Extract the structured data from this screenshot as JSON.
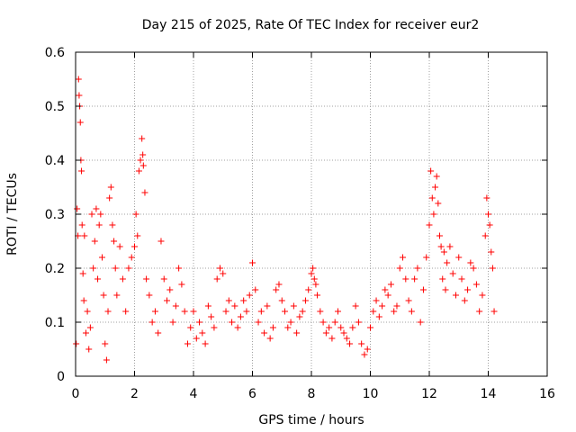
{
  "chart_data": {
    "type": "scatter",
    "title": "Day 215 of 2025, Rate Of TEC Index for receiver eur2",
    "xlabel": "GPS time / hours",
    "ylabel": "ROTI / TECUs",
    "xlim": [
      0,
      16
    ],
    "ylim": [
      0,
      0.6
    ],
    "xticks": [
      0,
      2,
      4,
      6,
      8,
      10,
      12,
      14,
      16
    ],
    "yticks": [
      0,
      0.1,
      0.2,
      0.3,
      0.4,
      0.5,
      0.6
    ],
    "xtick_labels": [
      "0",
      "2",
      "4",
      "6",
      "8",
      "10",
      "12",
      "14",
      "16"
    ],
    "ytick_labels": [
      "0",
      "0.1",
      "0.2",
      "0.3",
      "0.4",
      "0.5",
      "0.6"
    ],
    "grid": true,
    "legend": "none",
    "marker": "+",
    "series": [
      {
        "color": "#ff0000",
        "points": [
          [
            0.02,
            0.06
          ],
          [
            0.05,
            0.31
          ],
          [
            0.08,
            0.26
          ],
          [
            0.1,
            0.55
          ],
          [
            0.12,
            0.52
          ],
          [
            0.14,
            0.5
          ],
          [
            0.16,
            0.47
          ],
          [
            0.18,
            0.4
          ],
          [
            0.2,
            0.38
          ],
          [
            0.22,
            0.28
          ],
          [
            0.25,
            0.19
          ],
          [
            0.28,
            0.14
          ],
          [
            0.3,
            0.26
          ],
          [
            0.35,
            0.08
          ],
          [
            0.4,
            0.12
          ],
          [
            0.45,
            0.05
          ],
          [
            0.5,
            0.09
          ],
          [
            0.55,
            0.3
          ],
          [
            0.6,
            0.2
          ],
          [
            0.65,
            0.25
          ],
          [
            0.7,
            0.31
          ],
          [
            0.75,
            0.18
          ],
          [
            0.8,
            0.28
          ],
          [
            0.85,
            0.3
          ],
          [
            0.9,
            0.22
          ],
          [
            0.95,
            0.15
          ],
          [
            1.0,
            0.06
          ],
          [
            1.05,
            0.03
          ],
          [
            1.1,
            0.12
          ],
          [
            1.15,
            0.33
          ],
          [
            1.2,
            0.35
          ],
          [
            1.25,
            0.28
          ],
          [
            1.3,
            0.25
          ],
          [
            1.35,
            0.2
          ],
          [
            1.4,
            0.15
          ],
          [
            1.5,
            0.24
          ],
          [
            1.6,
            0.18
          ],
          [
            1.7,
            0.12
          ],
          [
            1.8,
            0.2
          ],
          [
            1.9,
            0.22
          ],
          [
            2.0,
            0.24
          ],
          [
            2.05,
            0.3
          ],
          [
            2.1,
            0.26
          ],
          [
            2.15,
            0.38
          ],
          [
            2.2,
            0.4
          ],
          [
            2.25,
            0.44
          ],
          [
            2.28,
            0.41
          ],
          [
            2.3,
            0.39
          ],
          [
            2.35,
            0.34
          ],
          [
            2.4,
            0.18
          ],
          [
            2.5,
            0.15
          ],
          [
            2.6,
            0.1
          ],
          [
            2.7,
            0.12
          ],
          [
            2.8,
            0.08
          ],
          [
            2.9,
            0.25
          ],
          [
            3.0,
            0.18
          ],
          [
            3.1,
            0.14
          ],
          [
            3.2,
            0.16
          ],
          [
            3.3,
            0.1
          ],
          [
            3.4,
            0.13
          ],
          [
            3.5,
            0.2
          ],
          [
            3.6,
            0.17
          ],
          [
            3.7,
            0.12
          ],
          [
            3.8,
            0.06
          ],
          [
            3.9,
            0.09
          ],
          [
            4.0,
            0.12
          ],
          [
            4.1,
            0.07
          ],
          [
            4.2,
            0.1
          ],
          [
            4.3,
            0.08
          ],
          [
            4.4,
            0.06
          ],
          [
            4.5,
            0.13
          ],
          [
            4.6,
            0.11
          ],
          [
            4.7,
            0.09
          ],
          [
            4.8,
            0.18
          ],
          [
            4.9,
            0.2
          ],
          [
            5.0,
            0.19
          ],
          [
            5.1,
            0.12
          ],
          [
            5.2,
            0.14
          ],
          [
            5.3,
            0.1
          ],
          [
            5.4,
            0.13
          ],
          [
            5.5,
            0.09
          ],
          [
            5.6,
            0.11
          ],
          [
            5.7,
            0.14
          ],
          [
            5.8,
            0.12
          ],
          [
            5.9,
            0.15
          ],
          [
            6.0,
            0.21
          ],
          [
            6.1,
            0.16
          ],
          [
            6.2,
            0.1
          ],
          [
            6.3,
            0.12
          ],
          [
            6.4,
            0.08
          ],
          [
            6.5,
            0.13
          ],
          [
            6.6,
            0.07
          ],
          [
            6.7,
            0.09
          ],
          [
            6.8,
            0.16
          ],
          [
            6.9,
            0.17
          ],
          [
            7.0,
            0.14
          ],
          [
            7.1,
            0.12
          ],
          [
            7.2,
            0.09
          ],
          [
            7.3,
            0.1
          ],
          [
            7.4,
            0.13
          ],
          [
            7.5,
            0.08
          ],
          [
            7.6,
            0.11
          ],
          [
            7.7,
            0.12
          ],
          [
            7.8,
            0.14
          ],
          [
            7.9,
            0.16
          ],
          [
            8.0,
            0.19
          ],
          [
            8.05,
            0.2
          ],
          [
            8.1,
            0.18
          ],
          [
            8.15,
            0.17
          ],
          [
            8.2,
            0.15
          ],
          [
            8.3,
            0.12
          ],
          [
            8.4,
            0.1
          ],
          [
            8.5,
            0.08
          ],
          [
            8.6,
            0.09
          ],
          [
            8.7,
            0.07
          ],
          [
            8.8,
            0.1
          ],
          [
            8.9,
            0.12
          ],
          [
            9.0,
            0.09
          ],
          [
            9.1,
            0.08
          ],
          [
            9.2,
            0.07
          ],
          [
            9.3,
            0.06
          ],
          [
            9.4,
            0.09
          ],
          [
            9.5,
            0.13
          ],
          [
            9.6,
            0.1
          ],
          [
            9.7,
            0.06
          ],
          [
            9.8,
            0.04
          ],
          [
            9.9,
            0.05
          ],
          [
            10.0,
            0.09
          ],
          [
            10.1,
            0.12
          ],
          [
            10.2,
            0.14
          ],
          [
            10.3,
            0.11
          ],
          [
            10.4,
            0.13
          ],
          [
            10.5,
            0.16
          ],
          [
            10.6,
            0.15
          ],
          [
            10.7,
            0.17
          ],
          [
            10.8,
            0.12
          ],
          [
            10.9,
            0.13
          ],
          [
            11.0,
            0.2
          ],
          [
            11.1,
            0.22
          ],
          [
            11.2,
            0.18
          ],
          [
            11.3,
            0.14
          ],
          [
            11.4,
            0.12
          ],
          [
            11.5,
            0.18
          ],
          [
            11.6,
            0.2
          ],
          [
            11.7,
            0.1
          ],
          [
            11.8,
            0.16
          ],
          [
            11.9,
            0.22
          ],
          [
            12.0,
            0.28
          ],
          [
            12.05,
            0.38
          ],
          [
            12.1,
            0.33
          ],
          [
            12.15,
            0.3
          ],
          [
            12.2,
            0.35
          ],
          [
            12.25,
            0.37
          ],
          [
            12.3,
            0.32
          ],
          [
            12.35,
            0.26
          ],
          [
            12.4,
            0.24
          ],
          [
            12.45,
            0.18
          ],
          [
            12.5,
            0.23
          ],
          [
            12.55,
            0.16
          ],
          [
            12.6,
            0.21
          ],
          [
            12.7,
            0.24
          ],
          [
            12.8,
            0.19
          ],
          [
            12.9,
            0.15
          ],
          [
            13.0,
            0.22
          ],
          [
            13.1,
            0.18
          ],
          [
            13.2,
            0.14
          ],
          [
            13.3,
            0.16
          ],
          [
            13.4,
            0.21
          ],
          [
            13.5,
            0.2
          ],
          [
            13.6,
            0.17
          ],
          [
            13.7,
            0.12
          ],
          [
            13.8,
            0.15
          ],
          [
            13.9,
            0.26
          ],
          [
            13.95,
            0.33
          ],
          [
            14.0,
            0.3
          ],
          [
            14.05,
            0.28
          ],
          [
            14.1,
            0.23
          ],
          [
            14.15,
            0.2
          ],
          [
            14.2,
            0.12
          ]
        ]
      }
    ]
  }
}
